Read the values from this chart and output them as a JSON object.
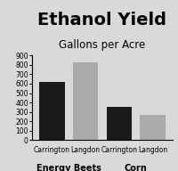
{
  "title": "Ethanol Yield",
  "subtitle": "Gallons per Acre",
  "categories": [
    "Carrington",
    "Langdon",
    "Carrington",
    "Langdon"
  ],
  "values": [
    615,
    825,
    355,
    265
  ],
  "bar_colors": [
    "#1a1a1a",
    "#aaaaaa",
    "#1a1a1a",
    "#aaaaaa"
  ],
  "group_labels": [
    "Energy Beets",
    "Corn"
  ],
  "ylim": [
    0,
    900
  ],
  "yticks": [
    0,
    100,
    200,
    300,
    400,
    500,
    600,
    700,
    800,
    900
  ],
  "title_fontsize": 14,
  "subtitle_fontsize": 8.5,
  "tick_fontsize": 5.5,
  "group_label_fontsize": 7,
  "bar_width": 0.75,
  "background_color": "#d9d9d9"
}
